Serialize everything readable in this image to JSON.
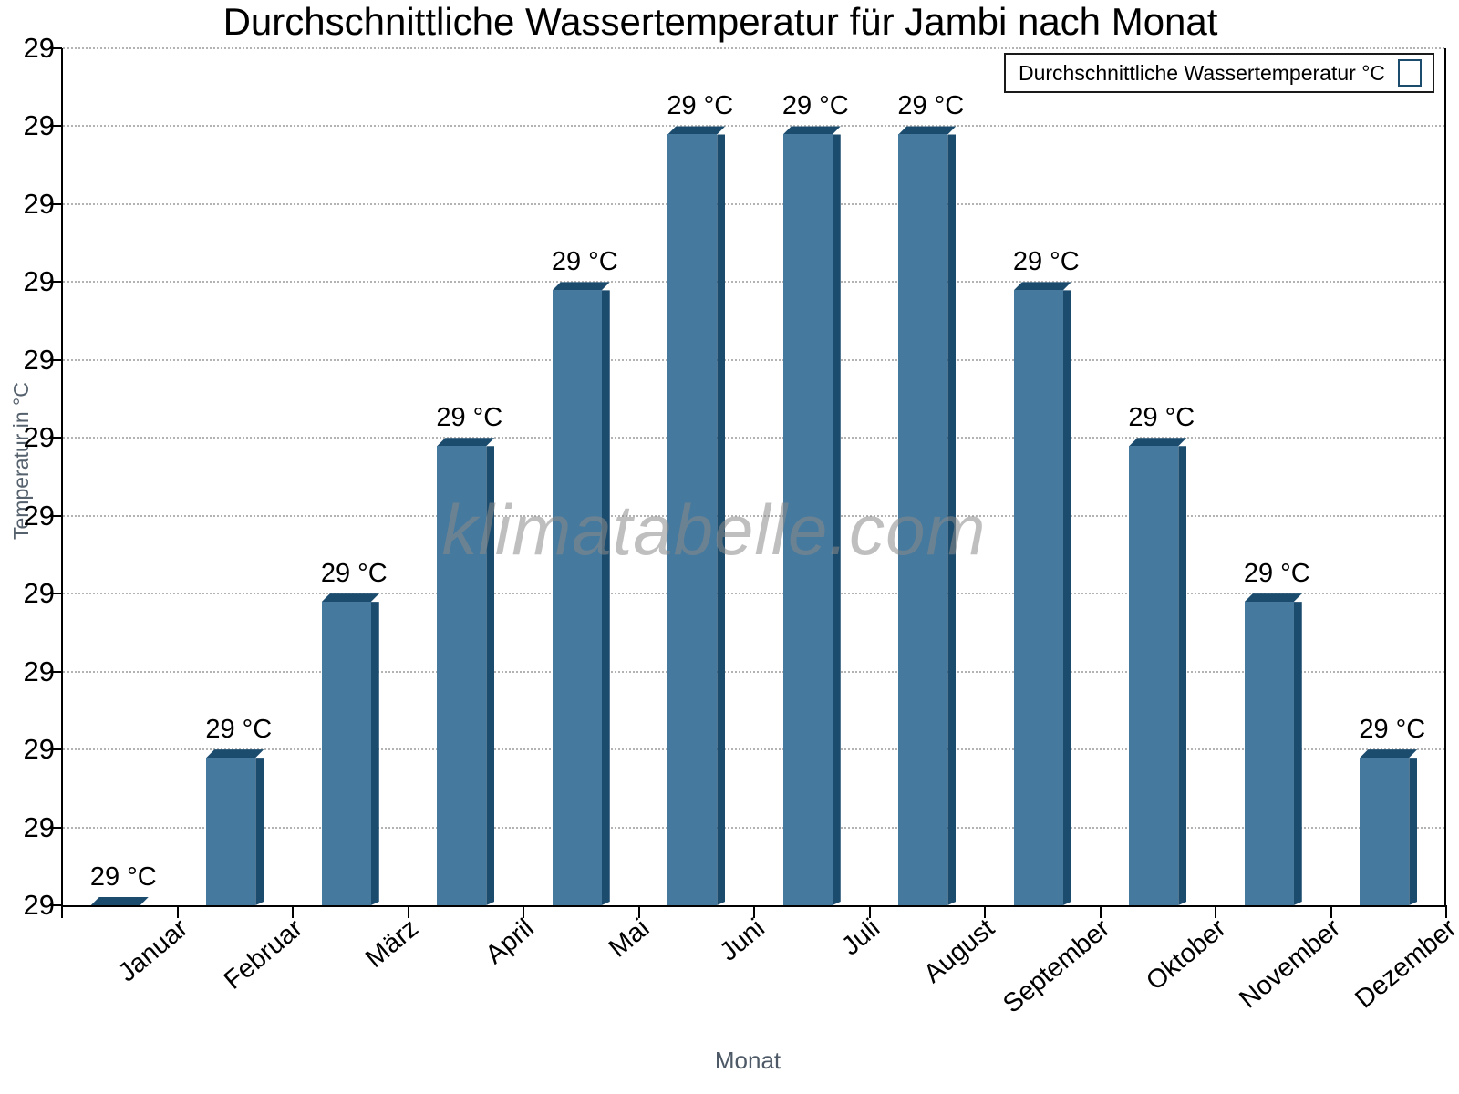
{
  "title": "Durchschnittliche Wassertemperatur für Jambi nach Monat",
  "watermark": "klimatabelle.com",
  "legend": {
    "label": "Durchschnittliche Wassertemperatur °C",
    "swatch_color": "#45799e"
  },
  "y_axis": {
    "title": "Temperatur in °C",
    "tick_label": "29",
    "tick_count": 12
  },
  "x_axis": {
    "title": "Monat"
  },
  "chart_data": {
    "type": "bar",
    "title": "Durchschnittliche Wassertemperatur für Jambi nach Monat",
    "categories": [
      "Januar",
      "Februar",
      "März",
      "April",
      "Mai",
      "Juni",
      "Juli",
      "August",
      "September",
      "Oktober",
      "November",
      "Dezember"
    ],
    "series": [
      {
        "name": "Durchschnittliche Wassertemperatur °C",
        "values": [
          28.5,
          28.6,
          28.7,
          28.8,
          28.9,
          29.0,
          29.0,
          29.0,
          28.9,
          28.8,
          28.7,
          28.6
        ],
        "display_labels": [
          "29 °C",
          "29 °C",
          "29 °C",
          "29 °C",
          "29 °C",
          "29 °C",
          "29 °C",
          "29 °C",
          "29 °C",
          "29 °C",
          "29 °C",
          "29 °C"
        ]
      }
    ],
    "xlabel": "Monat",
    "ylabel": "Temperatur in °C",
    "ylim": [
      28.5,
      29.05
    ],
    "y_tick_display": "29",
    "grid": "horizontal-dotted",
    "legend_position": "top-right"
  },
  "colors": {
    "bar_face": "#45799e",
    "bar_edge": "#1b4c6e",
    "grid": "#b3b3b3",
    "axis": "#000000",
    "axis_title_text": "#55616d",
    "watermark": "#8a8a8a"
  }
}
